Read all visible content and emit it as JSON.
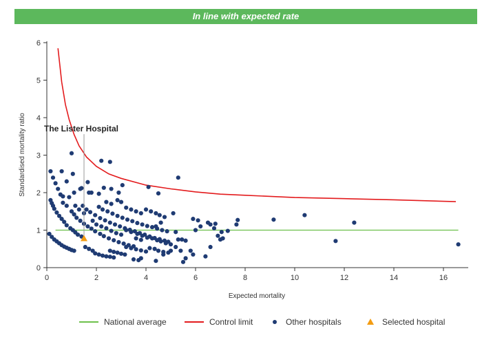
{
  "chart_data": {
    "type": "scatter",
    "title": "In line with expected rate",
    "xlabel": "Expected mortality",
    "ylabel": "Standardised mortality ratio",
    "xlim": [
      0,
      17
    ],
    "ylim": [
      0,
      6
    ],
    "x_ticks": [
      "0",
      "2",
      "4",
      "6",
      "8",
      "10",
      "12",
      "14",
      "16"
    ],
    "y_ticks": [
      "0",
      "1",
      "2",
      "3",
      "4",
      "5",
      "6"
    ],
    "national_average": 1,
    "control_limit": [
      [
        0.45,
        5.85
      ],
      [
        0.6,
        4.95
      ],
      [
        0.75,
        4.35
      ],
      [
        0.9,
        3.95
      ],
      [
        1.1,
        3.55
      ],
      [
        1.3,
        3.25
      ],
      [
        1.6,
        2.95
      ],
      [
        2.0,
        2.7
      ],
      [
        2.5,
        2.5
      ],
      [
        3.0,
        2.38
      ],
      [
        4.0,
        2.2
      ],
      [
        5.0,
        2.1
      ],
      [
        6.0,
        2.02
      ],
      [
        7.0,
        1.96
      ],
      [
        8.0,
        1.93
      ],
      [
        10.0,
        1.87
      ],
      [
        12.0,
        1.84
      ],
      [
        14.0,
        1.81
      ],
      [
        16.5,
        1.76
      ]
    ],
    "other_hospitals": [
      [
        0.15,
        2.57
      ],
      [
        0.25,
        2.4
      ],
      [
        0.35,
        2.25
      ],
      [
        0.45,
        2.1
      ],
      [
        0.55,
        1.95
      ],
      [
        0.6,
        2.57
      ],
      [
        0.65,
        1.9
      ],
      [
        0.8,
        2.3
      ],
      [
        0.9,
        1.88
      ],
      [
        1.0,
        3.05
      ],
      [
        1.05,
        2.5
      ],
      [
        1.1,
        2.0
      ],
      [
        1.35,
        2.1
      ],
      [
        1.4,
        2.12
      ],
      [
        1.65,
        2.28
      ],
      [
        1.7,
        2.0
      ],
      [
        1.8,
        2.0
      ],
      [
        2.1,
        1.97
      ],
      [
        2.2,
        2.85
      ],
      [
        2.3,
        2.13
      ],
      [
        2.55,
        2.82
      ],
      [
        2.6,
        2.1
      ],
      [
        2.9,
        2.0
      ],
      [
        3.05,
        2.2
      ],
      [
        4.1,
        2.15
      ],
      [
        4.5,
        1.98
      ],
      [
        5.3,
        2.4
      ],
      [
        0.15,
        1.8
      ],
      [
        0.2,
        1.72
      ],
      [
        0.25,
        1.65
      ],
      [
        0.3,
        1.57
      ],
      [
        0.4,
        1.47
      ],
      [
        0.5,
        1.38
      ],
      [
        0.6,
        1.3
      ],
      [
        0.7,
        1.22
      ],
      [
        0.8,
        1.13
      ],
      [
        0.95,
        1.05
      ],
      [
        1.05,
        1.0
      ],
      [
        1.15,
        0.94
      ],
      [
        1.25,
        0.88
      ],
      [
        1.4,
        0.83
      ],
      [
        0.65,
        1.73
      ],
      [
        0.8,
        1.65
      ],
      [
        1.0,
        1.5
      ],
      [
        1.1,
        1.42
      ],
      [
        1.2,
        1.33
      ],
      [
        1.35,
        1.25
      ],
      [
        1.5,
        1.17
      ],
      [
        1.65,
        1.1
      ],
      [
        1.8,
        1.04
      ],
      [
        1.95,
        0.97
      ],
      [
        2.15,
        0.9
      ],
      [
        2.3,
        0.84
      ],
      [
        2.5,
        0.78
      ],
      [
        2.7,
        0.73
      ],
      [
        2.9,
        0.68
      ],
      [
        3.1,
        0.64
      ],
      [
        3.3,
        0.6
      ],
      [
        3.5,
        0.57
      ],
      [
        1.45,
        1.65
      ],
      [
        1.6,
        1.55
      ],
      [
        1.75,
        1.48
      ],
      [
        1.95,
        1.4
      ],
      [
        2.15,
        1.32
      ],
      [
        2.35,
        1.26
      ],
      [
        2.55,
        1.2
      ],
      [
        2.75,
        1.15
      ],
      [
        2.95,
        1.1
      ],
      [
        3.15,
        1.05
      ],
      [
        3.35,
        1.01
      ],
      [
        3.55,
        0.97
      ],
      [
        3.75,
        0.92
      ],
      [
        3.95,
        0.88
      ],
      [
        4.15,
        0.83
      ],
      [
        4.35,
        0.79
      ],
      [
        4.55,
        0.76
      ],
      [
        4.75,
        0.72
      ],
      [
        4.9,
        0.69
      ],
      [
        2.1,
        1.62
      ],
      [
        2.25,
        1.55
      ],
      [
        2.45,
        1.5
      ],
      [
        2.65,
        1.44
      ],
      [
        2.85,
        1.38
      ],
      [
        3.05,
        1.33
      ],
      [
        3.25,
        1.28
      ],
      [
        3.45,
        1.24
      ],
      [
        3.65,
        1.19
      ],
      [
        3.85,
        1.15
      ],
      [
        4.05,
        1.11
      ],
      [
        4.25,
        1.08
      ],
      [
        4.45,
        1.04
      ],
      [
        4.65,
        1.0
      ],
      [
        4.85,
        0.97
      ],
      [
        2.4,
        1.75
      ],
      [
        2.6,
        1.7
      ],
      [
        2.85,
        1.8
      ],
      [
        3.0,
        1.75
      ],
      [
        3.2,
        1.6
      ],
      [
        3.4,
        1.55
      ],
      [
        3.6,
        1.5
      ],
      [
        3.8,
        1.45
      ],
      [
        4.0,
        1.55
      ],
      [
        4.2,
        1.5
      ],
      [
        4.4,
        1.45
      ],
      [
        4.55,
        1.4
      ],
      [
        4.75,
        1.35
      ],
      [
        5.1,
        1.45
      ],
      [
        4.6,
        1.2
      ],
      [
        4.4,
        1.1
      ],
      [
        0.1,
        0.9
      ],
      [
        0.2,
        0.82
      ],
      [
        0.3,
        0.75
      ],
      [
        0.4,
        0.7
      ],
      [
        0.5,
        0.65
      ],
      [
        0.6,
        0.6
      ],
      [
        0.7,
        0.56
      ],
      [
        0.8,
        0.53
      ],
      [
        0.9,
        0.5
      ],
      [
        1.0,
        0.47
      ],
      [
        1.1,
        0.45
      ],
      [
        1.55,
        0.55
      ],
      [
        1.7,
        0.5
      ],
      [
        1.85,
        0.45
      ],
      [
        1.95,
        0.38
      ],
      [
        2.1,
        0.35
      ],
      [
        2.25,
        0.32
      ],
      [
        2.4,
        0.3
      ],
      [
        2.55,
        0.29
      ],
      [
        2.7,
        0.27
      ],
      [
        2.55,
        0.45
      ],
      [
        2.7,
        0.42
      ],
      [
        2.85,
        0.4
      ],
      [
        3.0,
        0.37
      ],
      [
        3.15,
        0.35
      ],
      [
        3.2,
        0.55
      ],
      [
        3.4,
        0.52
      ],
      [
        3.6,
        0.49
      ],
      [
        3.8,
        0.46
      ],
      [
        4.0,
        0.43
      ],
      [
        4.15,
        0.52
      ],
      [
        4.35,
        0.5
      ],
      [
        4.5,
        0.45
      ],
      [
        4.7,
        0.42
      ],
      [
        4.9,
        0.4
      ],
      [
        3.5,
        0.22
      ],
      [
        3.7,
        0.2
      ],
      [
        3.8,
        0.25
      ],
      [
        4.4,
        0.18
      ],
      [
        4.7,
        0.35
      ],
      [
        5.0,
        0.45
      ],
      [
        5.2,
        0.55
      ],
      [
        5.4,
        0.45
      ],
      [
        5.5,
        0.15
      ],
      [
        5.6,
        0.25
      ],
      [
        5.8,
        0.45
      ],
      [
        5.9,
        0.35
      ],
      [
        3.2,
        1.0
      ],
      [
        3.4,
        0.95
      ],
      [
        3.65,
        0.9
      ],
      [
        3.85,
        0.85
      ],
      [
        4.05,
        0.8
      ],
      [
        4.25,
        0.78
      ],
      [
        4.45,
        0.73
      ],
      [
        4.6,
        0.7
      ],
      [
        4.8,
        0.65
      ],
      [
        5.0,
        0.62
      ],
      [
        5.3,
        0.75
      ],
      [
        5.45,
        0.75
      ],
      [
        5.6,
        0.72
      ],
      [
        5.2,
        0.95
      ],
      [
        5.9,
        1.3
      ],
      [
        6.0,
        1.0
      ],
      [
        6.1,
        1.26
      ],
      [
        6.2,
        1.1
      ],
      [
        6.4,
        0.3
      ],
      [
        6.5,
        1.2
      ],
      [
        6.6,
        1.15
      ],
      [
        6.6,
        0.55
      ],
      [
        6.75,
        1.05
      ],
      [
        6.8,
        1.17
      ],
      [
        6.9,
        0.85
      ],
      [
        7.0,
        0.75
      ],
      [
        7.05,
        0.95
      ],
      [
        7.1,
        0.78
      ],
      [
        7.3,
        0.98
      ],
      [
        7.65,
        1.15
      ],
      [
        7.7,
        1.27
      ],
      [
        9.15,
        1.28
      ],
      [
        10.4,
        1.4
      ],
      [
        11.65,
        0.71
      ],
      [
        12.4,
        1.2
      ],
      [
        16.6,
        0.62
      ],
      [
        1.15,
        1.65
      ],
      [
        1.3,
        1.55
      ],
      [
        1.5,
        1.45
      ],
      [
        1.85,
        1.25
      ],
      [
        2.0,
        1.15
      ],
      [
        2.2,
        1.1
      ],
      [
        2.4,
        1.05
      ],
      [
        2.6,
        0.98
      ],
      [
        2.8,
        0.92
      ],
      [
        3.0,
        0.88
      ],
      [
        3.6,
        0.78
      ],
      [
        3.8,
        0.74
      ]
    ],
    "selected_hospital": {
      "name": "The Lister Hospital",
      "x": 1.5,
      "y": 0.78
    }
  },
  "legend": {
    "national_average": "National average",
    "control_limit": "Control limit",
    "other_hospitals": "Other hospitals",
    "selected_hospital": "Selected hospital"
  },
  "colors": {
    "banner": "#5cb85c",
    "national_average": "#6cc04a",
    "control_limit": "#e31a1c",
    "other_hospitals": "#1f3b73",
    "selected_hospital": "#f39c12",
    "axis": "#333333",
    "pointer_line": "#999999"
  }
}
